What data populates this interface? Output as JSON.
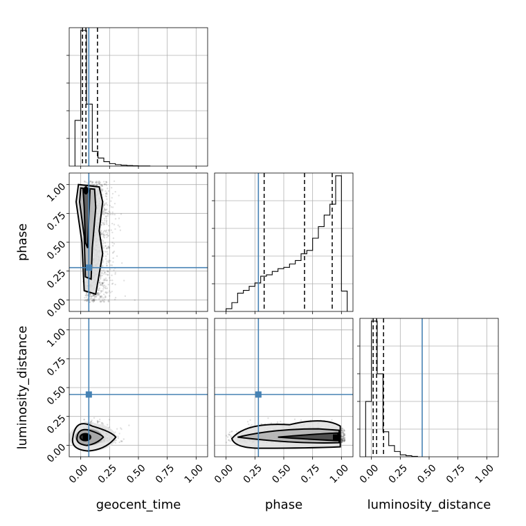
{
  "chart_data": {
    "type": "scatter",
    "kind": "corner-plot",
    "parameters": [
      "geocent_time",
      "phase",
      "luminosity_distance"
    ],
    "axis_range": [
      -0.1,
      1.1
    ],
    "ticks": [
      0.0,
      0.25,
      0.5,
      0.75,
      1.0
    ],
    "tick_labels": [
      "0.00",
      "0.25",
      "0.50",
      "0.75",
      "1.00"
    ],
    "grid": true,
    "truths": {
      "geocent_time": 0.07,
      "phase": 0.28,
      "luminosity_distance": 0.44
    },
    "colors": {
      "truth": "#4682b4",
      "lines": "#000000",
      "grid": "#b0b0b0",
      "points": "#000000"
    },
    "marginals": [
      {
        "parameter": "geocent_time",
        "bin_edges": [
          -0.05,
          0.0,
          0.05,
          0.1,
          0.15,
          0.2,
          0.25,
          0.3,
          0.35,
          0.4,
          0.45,
          0.5,
          0.55,
          0.6
        ],
        "counts": [
          0.31,
          0.92,
          0.42,
          0.1,
          0.055,
          0.03,
          0.017,
          0.01,
          0.006,
          0.004,
          0.002,
          0.001,
          0.001
        ],
        "quantiles": [
          0.015,
          0.045,
          0.145
        ]
      },
      {
        "parameter": "phase",
        "bin_edges": [
          0.0,
          0.05,
          0.1,
          0.15,
          0.2,
          0.25,
          0.3,
          0.35,
          0.4,
          0.45,
          0.5,
          0.55,
          0.6,
          0.65,
          0.7,
          0.75,
          0.8,
          0.85,
          0.9,
          0.95,
          1.0,
          1.05
        ],
        "counts": [
          0.04,
          0.13,
          0.27,
          0.31,
          0.37,
          0.42,
          0.52,
          0.54,
          0.59,
          0.63,
          0.65,
          0.7,
          0.75,
          0.85,
          0.9,
          1.08,
          1.25,
          1.42,
          1.58,
          2.0,
          0.3
        ],
        "quantiles": [
          0.33,
          0.68,
          0.92
        ]
      },
      {
        "parameter": "luminosity_distance",
        "bin_edges": [
          -0.05,
          0.0,
          0.05,
          0.1,
          0.15,
          0.2,
          0.25,
          0.3,
          0.35,
          0.4
        ],
        "counts": [
          0.42,
          1.03,
          0.63,
          0.19,
          0.085,
          0.04,
          0.015,
          0.008,
          0.003
        ],
        "quantiles": [
          0.015,
          0.045,
          0.105
        ]
      }
    ],
    "joint": [
      {
        "x": "geocent_time",
        "y": "phase",
        "scatter_center": [
          0.15,
          0.5
        ],
        "scatter_spread": [
          0.12,
          0.3
        ],
        "mode": [
          0.04,
          0.95
        ]
      },
      {
        "x": "geocent_time",
        "y": "luminosity_distance",
        "scatter_center": [
          0.15,
          0.07
        ],
        "scatter_spread": [
          0.1,
          0.06
        ],
        "mode": [
          0.04,
          0.07
        ]
      },
      {
        "x": "phase",
        "y": "luminosity_distance",
        "scatter_center": [
          0.6,
          0.08
        ],
        "scatter_spread": [
          0.28,
          0.06
        ],
        "mode": [
          0.95,
          0.07
        ]
      }
    ]
  }
}
